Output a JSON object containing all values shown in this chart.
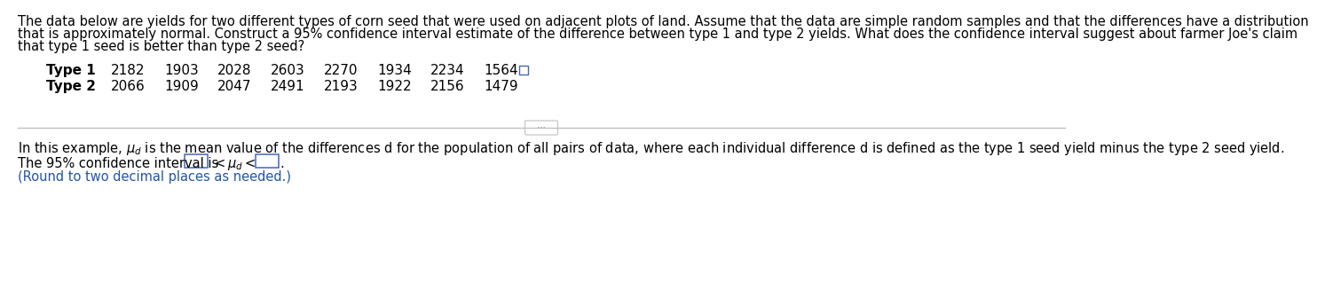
{
  "background_color": "#ffffff",
  "para_line1": "The data below are yields for two different types of corn seed that were used on adjacent plots of land. Assume that the data are simple random samples and that the differences have a distribution",
  "para_line2": "that is approximately normal. Construct a 95% confidence interval estimate of the difference between type 1 and type 2 yields. What does the confidence interval suggest about farmer Joe's claim",
  "para_line3": "that type 1 seed is better than type 2 seed?",
  "type1_label": "Type 1",
  "type2_label": "Type 2",
  "type1_values": [
    2182,
    1903,
    2028,
    2603,
    2270,
    1934,
    2234,
    1564
  ],
  "type2_values": [
    2066,
    1909,
    2047,
    2491,
    2193,
    1922,
    2156,
    1479
  ],
  "explanation_text": "In this example, $\\mu_d$ is the mean value of the differences d for the population of all pairs of data, where each individual difference d is defined as the type 1 seed yield minus the type 2 seed yield.",
  "ci_prefix": "The 95% confidence interval is ",
  "round_note": "(Round to two decimal places as needed.)",
  "text_color": "#000000",
  "blue_color": "#2255a4",
  "box_edge_color": "#4466bb",
  "divider_color": "#c0c0c0",
  "font_size_para": 10.5,
  "font_size_table": 11.0,
  "font_size_explain": 10.5,
  "font_size_ci": 10.5
}
